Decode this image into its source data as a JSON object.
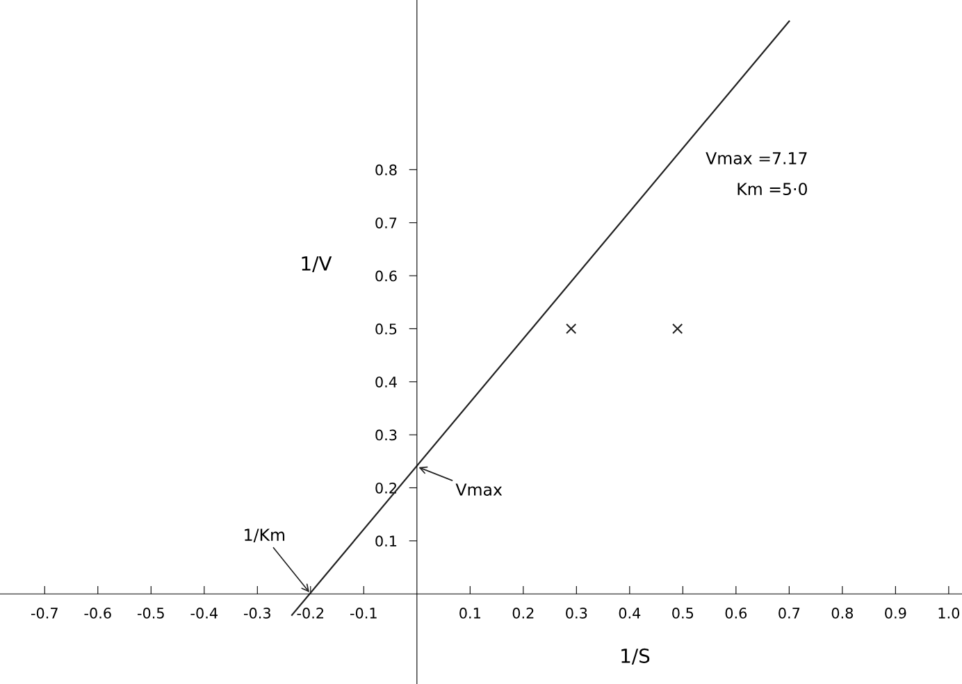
{
  "chart_data": {
    "type": "scatter",
    "xlabel": "1/S",
    "ylabel": "1/V",
    "xlim": [
      -0.784,
      1.025
    ],
    "ylim": [
      -0.17,
      1.12
    ],
    "xticks": [
      -0.7,
      -0.6,
      -0.5,
      -0.4,
      -0.3,
      -0.2,
      -0.1,
      0.1,
      0.2,
      0.3,
      0.4,
      0.5,
      0.6,
      0.7,
      0.8,
      0.9,
      {
        "value": 1.0,
        "label": "1.0"
      }
    ],
    "yticks": [
      0.1,
      0.2,
      0.3,
      0.4,
      0.5,
      0.6,
      0.7,
      0.8
    ],
    "series": [
      {
        "color": "#222222",
        "marker": "cross",
        "x": [
          0.29,
          0.49
        ],
        "values": [
          0.5,
          0.5
        ]
      },
      {
        "type": "line",
        "color": "#222222",
        "marker": "none",
        "x": [
          -0.235,
          0.7
        ],
        "values": [
          -0.04,
          1.08
        ]
      }
    ],
    "annotations": [
      "Vmax =7.17",
      "Km =5·0",
      {
        "text": "Vmax",
        "x": 0,
        "y": 0.24
      },
      {
        "text": "1/Km",
        "x": -0.2,
        "y": 0
      }
    ],
    "grid": false
  }
}
